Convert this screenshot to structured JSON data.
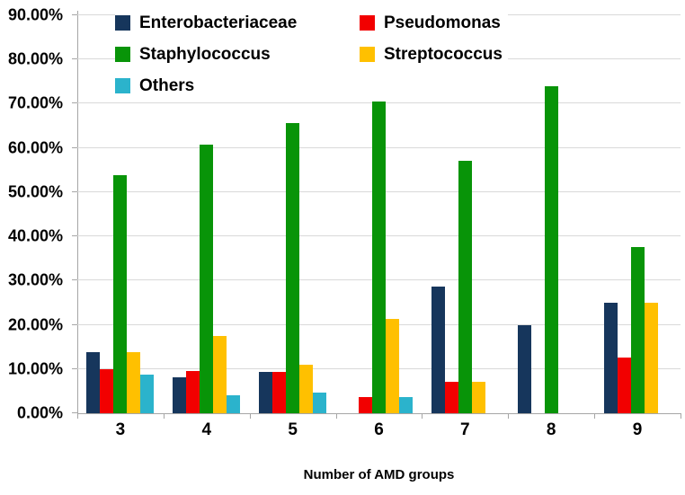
{
  "chart_data": {
    "type": "bar",
    "title": "",
    "xlabel": "Number of AMD groups",
    "ylabel": "",
    "categories": [
      "3",
      "4",
      "5",
      "6",
      "7",
      "8",
      "9"
    ],
    "series": [
      {
        "name": "Enterobacteriaceae",
        "color": "#16365C",
        "values": [
          13.75,
          8.11,
          9.38,
          0,
          28.57,
          20.0,
          25.0
        ]
      },
      {
        "name": "Pseudomonas",
        "color": "#F20000",
        "values": [
          10.0,
          9.46,
          9.38,
          3.57,
          7.14,
          0,
          12.5
        ]
      },
      {
        "name": "Staphylococcus",
        "color": "#089408",
        "values": [
          53.75,
          60.81,
          65.63,
          71.43,
          57.14,
          74.0,
          37.5
        ]
      },
      {
        "name": "Streptococcus",
        "color": "#FFC000",
        "values": [
          13.75,
          17.57,
          10.94,
          21.43,
          7.14,
          0,
          25.0
        ]
      },
      {
        "name": "Others",
        "color": "#2BB3CC",
        "values": [
          8.75,
          4.05,
          4.69,
          3.57,
          0,
          0,
          0
        ]
      }
    ],
    "ylim": [
      0,
      90
    ],
    "ytick_step": 10,
    "ytick_labels": [
      "0.00%",
      "10.00%",
      "20.00%",
      "30.00%",
      "40.00%",
      "50.00%",
      "60.00%",
      "70.00%",
      "80.00%",
      "90.00%"
    ],
    "grid": true,
    "legend_position": "top-inside-two-columns",
    "colors": {
      "gridline": "#d9d9d9",
      "axis": "#a6a6a6",
      "text": "#000000",
      "background": "#ffffff"
    }
  }
}
